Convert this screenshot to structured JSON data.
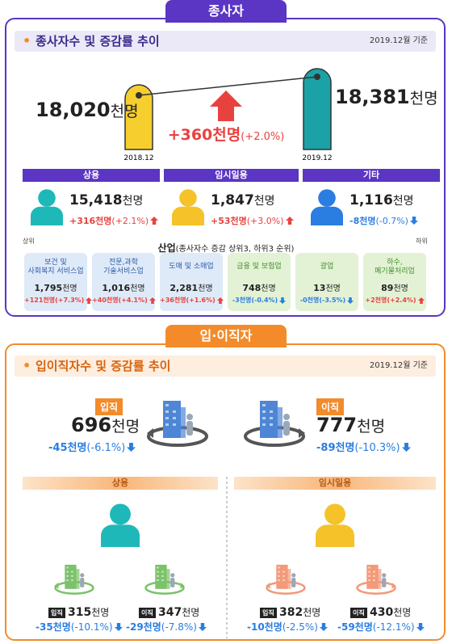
{
  "workers": {
    "tab": "종사자",
    "header": {
      "title": "종사자수 및 증감률 추이",
      "date": "2019.12월 기준"
    },
    "total": {
      "before": {
        "label": "2018.12",
        "value": "18,020",
        "unit": "천명"
      },
      "after": {
        "label": "2019.12",
        "value": "18,381",
        "unit": "천명"
      },
      "change": "+360천명",
      "rate": "(+2.0%)"
    },
    "types": [
      {
        "name": "상용",
        "color": "#1fb8b8",
        "value": "15,418",
        "unit": "천명",
        "change": "+316천명",
        "rate": "(+2.1%)"
      },
      {
        "name": "임시일용",
        "color": "#f5c22a",
        "value": "1,847",
        "unit": "천명",
        "change": "+53천명",
        "rate": "(+3.0%)"
      },
      {
        "name": "기타",
        "color": "#2a7de1",
        "value": "1,116",
        "unit": "천명",
        "change": "-8천명",
        "rate": "(-0.7%)"
      }
    ],
    "industry": {
      "title": "산업",
      "subtitle": "(종사자수 증감 상위3, 하위3 순위)",
      "top": "상위",
      "bottom": "하위",
      "items": [
        {
          "name": [
            "보건 및",
            "사회복지 서비스업"
          ],
          "value": "1,795",
          "unit": "천명",
          "change": "+121천명(+7.3%)"
        },
        {
          "name": [
            "전문,과학",
            "기술서비스업"
          ],
          "value": "1,016",
          "unit": "천명",
          "change": "+40천명(+4.1%)"
        },
        {
          "name": [
            "도매 및 소매업"
          ],
          "value": "2,281",
          "unit": "천명",
          "change": "+36천명(+1.6%)"
        },
        {
          "name": [
            "금융 및 보험업"
          ],
          "value": "748",
          "unit": "천명",
          "change": "-3천명(-0.4%)"
        },
        {
          "name": [
            "광업"
          ],
          "value": "13",
          "unit": "천명",
          "change": "-0천명(-3.5%)"
        },
        {
          "name": [
            "하수,",
            "폐기물처리업"
          ],
          "value": "89",
          "unit": "천명",
          "change": "+2천명(+2.4%)"
        }
      ]
    }
  },
  "turnover": {
    "tab": "입·이직자",
    "header": {
      "title": "입이직자수 및 증감률 추이",
      "date": "2019.12월 기준"
    },
    "hires": {
      "label": "입직",
      "value": "696",
      "unit": "천명",
      "change": "-45천명",
      "rate": "(-6.1%)"
    },
    "separations": {
      "label": "이직",
      "value": "777",
      "unit": "천명",
      "change": "-89천명",
      "rate": "(-10.3%)"
    },
    "groups": [
      {
        "name": "상용",
        "color": "#1fb8b8",
        "hires": {
          "label": "입직",
          "value": "315",
          "unit": "천명",
          "change": "-35천명",
          "rate": "(-10.1%)"
        },
        "separations": {
          "label": "이직",
          "value": "347",
          "unit": "천명",
          "change": "-29천명",
          "rate": "(-7.8%)"
        }
      },
      {
        "name": "임시일용",
        "color": "#f5c22a",
        "hires": {
          "label": "입직",
          "value": "382",
          "unit": "천명",
          "change": "-10천명",
          "rate": "(-2.5%)"
        },
        "separations": {
          "label": "이직",
          "value": "430",
          "unit": "천명",
          "change": "-59천명",
          "rate": "(-12.1%)"
        }
      }
    ]
  }
}
